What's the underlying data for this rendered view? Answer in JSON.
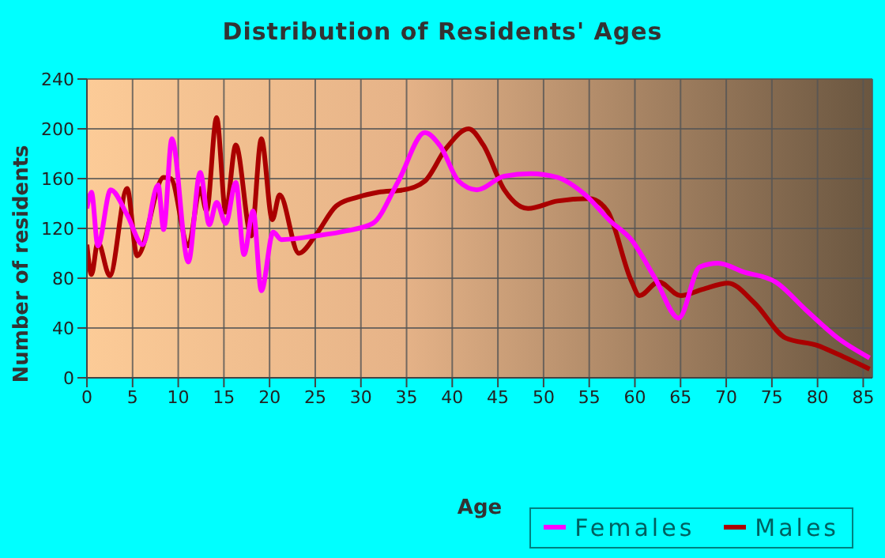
{
  "chart_data": {
    "type": "line",
    "title": "Distribution of Residents' Ages",
    "xlabel": "Age",
    "ylabel": "Number of residents",
    "xlim": [
      0,
      86
    ],
    "xticks": [
      0,
      5,
      10,
      15,
      20,
      25,
      30,
      35,
      40,
      45,
      50,
      55,
      60,
      65,
      70,
      75,
      80,
      85
    ],
    "ylim": [
      0,
      240
    ],
    "yticks": [
      0,
      40,
      80,
      120,
      160,
      200,
      240
    ],
    "grid": true,
    "legend": "bottom right",
    "marker": "none",
    "line_style": "solid",
    "series": [
      {
        "name": "Males",
        "color": "#aa0000",
        "x": [
          0,
          0.5,
          1.2,
          2.5,
          4.4,
          5.5,
          8.4,
          9.2,
          11.1,
          12.4,
          13.1,
          14.2,
          15.2,
          16.3,
          18,
          19.1,
          20.3,
          21.1,
          23.2,
          25,
          27.3,
          29.6,
          31.9,
          34.7,
          37,
          39.3,
          41.8,
          43.4,
          45.7,
          48.3,
          51.5,
          55,
          57,
          59.6,
          60.5,
          62.6,
          65,
          67.4,
          70.2,
          73.1,
          76.5,
          80,
          82.2,
          85.7
        ],
        "values": [
          107,
          83,
          109,
          82,
          152,
          98,
          161,
          160,
          106,
          152,
          134,
          209,
          133,
          187,
          114,
          192,
          127,
          147,
          100,
          114,
          138,
          145,
          149,
          151,
          158,
          184,
          200,
          187,
          151,
          136,
          142,
          144,
          134,
          78,
          66,
          77,
          66,
          71,
          76,
          60,
          32,
          26,
          19,
          7
        ]
      },
      {
        "name": "Females",
        "color": "#ff00ff",
        "x": [
          0,
          0.5,
          1.2,
          2.6,
          4.4,
          6.1,
          7.8,
          8.4,
          9.3,
          11.1,
          12.4,
          13.4,
          14.2,
          15.2,
          16.3,
          17.2,
          18.2,
          19.1,
          20.4,
          21.3,
          25,
          28.4,
          31.3,
          34.1,
          37,
          38.7,
          40.7,
          42.7,
          45.7,
          48.6,
          51.5,
          54.4,
          57.3,
          59.6,
          62.2,
          64.8,
          67.1,
          69.1,
          71.9,
          75.4,
          78.8,
          82.2,
          85.7
        ],
        "values": [
          136,
          149,
          106,
          151,
          131,
          107,
          155,
          119,
          192,
          93,
          165,
          123,
          141,
          124,
          157,
          99,
          134,
          70,
          117,
          111,
          114,
          118,
          124,
          158,
          197,
          186,
          158,
          151,
          162,
          164,
          161,
          148,
          126,
          111,
          80,
          48,
          89,
          92,
          85,
          77,
          54,
          32,
          16
        ]
      }
    ]
  }
}
